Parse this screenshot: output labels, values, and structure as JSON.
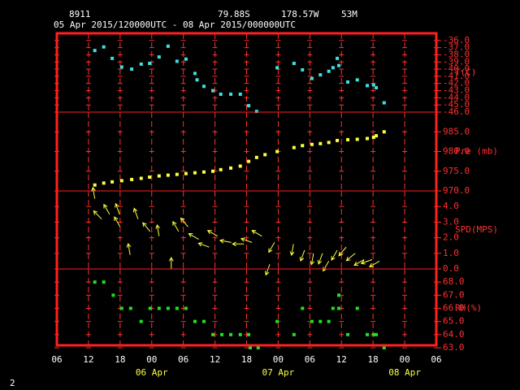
{
  "header": {
    "station": "8911",
    "lat": "79.88S",
    "lon": "178.57W",
    "elev": "53M",
    "period": "05 Apr 2015/120000UTC - 08 Apr 2015/000000UTC"
  },
  "footer": "2",
  "x_axis": {
    "xlim": [
      6,
      78
    ],
    "xticks": [
      {
        "value": 6,
        "label": "06"
      },
      12,
      18,
      {
        "value": 24,
        "label": "00"
      },
      {
        "value": 30,
        "label": "06"
      },
      {
        "value": 36,
        "label": "12"
      },
      {
        "value": 42,
        "label": "18"
      },
      {
        "value": 48,
        "label": "00"
      },
      {
        "value": 54,
        "label": "06"
      },
      {
        "value": 60,
        "label": "12"
      },
      {
        "value": 66,
        "label": "18"
      },
      {
        "value": 72,
        "label": "00"
      },
      {
        "value": 78,
        "label": "06"
      }
    ],
    "date_labels": [
      {
        "value": 24,
        "label": "06 Apr"
      },
      {
        "value": 48,
        "label": "07 Apr"
      },
      {
        "value": 72,
        "label": "08 Apr"
      }
    ]
  },
  "chart_data": [
    {
      "type": "scatter",
      "ylabel": "T(C)",
      "color": "#40e0e0",
      "ylim": [
        -46,
        -35
      ],
      "yticks": [
        {
          "value": -36,
          "label": "-36.0"
        },
        {
          "value": -37,
          "label": "-37.0"
        },
        {
          "value": -38,
          "label": "-38.0"
        },
        {
          "value": -39,
          "label": "-39.0"
        },
        {
          "value": -40,
          "label": "-40.0"
        },
        {
          "value": -41,
          "label": "-41.0"
        },
        {
          "value": -42,
          "label": "-42.0"
        },
        {
          "value": -43,
          "label": "-43.0"
        },
        {
          "value": -44,
          "label": "-44.0"
        },
        {
          "value": -45,
          "label": "-45.0"
        },
        {
          "value": -46,
          "label": "-46.0"
        }
      ],
      "x": [
        13.2,
        14.9,
        16.5,
        18.3,
        20.2,
        22,
        23.6,
        25.4,
        27.1,
        28.8,
        30.5,
        32.2,
        32.6,
        33.9,
        35.6,
        37.1,
        39,
        40.8,
        42.4,
        43.9,
        47.8,
        51,
        52.6,
        54.4,
        56,
        57.6,
        58.4,
        59.2,
        59.5,
        61.2,
        63,
        64.9,
        66.1,
        66.6,
        68.1
      ],
      "values": [
        -37.4,
        -36.9,
        -38.5,
        -39.7,
        -40,
        -39.3,
        -39.2,
        -38.3,
        -36.8,
        -38.9,
        -38.6,
        -40.6,
        -41.5,
        -42.4,
        -43,
        -43.5,
        -43.5,
        -43.5,
        -45.1,
        -45.9,
        -39.8,
        -39.2,
        -40.1,
        -41.3,
        -40.8,
        -40.3,
        -39.8,
        -38.5,
        -39.5,
        -41.8,
        -41.5,
        -42.3,
        -42.2,
        -42.6,
        -44.7
      ]
    },
    {
      "type": "scatter",
      "ylabel": "Pre (mb)",
      "color": "#ffff40",
      "ylim": [
        970,
        990
      ],
      "yticks": [
        {
          "value": 970,
          "label": "970.0"
        },
        {
          "value": 975,
          "label": "975.0"
        },
        {
          "value": 980,
          "label": "980.0"
        },
        {
          "value": 985,
          "label": "985.0"
        }
      ],
      "x": [
        13.2,
        14.9,
        16.5,
        18.3,
        20.2,
        22,
        23.6,
        25.4,
        27.1,
        28.8,
        30.5,
        32.2,
        33.9,
        35.6,
        37.1,
        39,
        40.8,
        42.4,
        43.9,
        45.5,
        47.8,
        51,
        52.6,
        54.4,
        56,
        57.6,
        59.2,
        61.2,
        63,
        64.9,
        66.1,
        66.6,
        68.1
      ],
      "values": [
        971.5,
        972,
        972.3,
        972.6,
        972.9,
        973.2,
        973.5,
        973.8,
        974,
        974.2,
        974.4,
        974.6,
        974.8,
        975,
        975.4,
        975.8,
        976.3,
        977.5,
        978.5,
        979.2,
        980,
        981,
        981.5,
        981.8,
        982,
        982.3,
        982.8,
        983,
        983.1,
        983.3,
        983.6,
        984,
        985
      ]
    },
    {
      "type": "vector",
      "ylabel": "SPD(MPS)",
      "color": "#ffff40",
      "ylim": [
        0,
        5
      ],
      "yticks": [
        {
          "value": 0,
          "label": "0.0"
        },
        {
          "value": 1,
          "label": "1.0"
        },
        {
          "value": 2,
          "label": "2.0"
        },
        {
          "value": 3,
          "label": "3.0"
        },
        {
          "value": 4,
          "label": "4.0"
        }
      ],
      "x": [
        13.2,
        14.5,
        16,
        17.9,
        18,
        19.9,
        21.4,
        23.7,
        25.4,
        27.7,
        29.1,
        30.9,
        32.9,
        34.9,
        36.5,
        39.1,
        41.5,
        43,
        44.9,
        46.4,
        47.3,
        50.9,
        53,
        54.7,
        56.4,
        57.6,
        59.2,
        60.9,
        62.6,
        64.3,
        65.8,
        67.2
      ],
      "values": [
        4.5,
        3.2,
        3.5,
        3.5,
        2.7,
        0.9,
        3.2,
        2.4,
        2.1,
        0,
        2.4,
        2.7,
        1.9,
        1.4,
        2.1,
        1.7,
        1.6,
        1.7,
        2.1,
        0.3,
        1.7,
        1.6,
        1.2,
        1,
        1,
        0.5,
        1.2,
        1.4,
        1,
        0.6,
        0.6,
        0.5
      ],
      "directions": [
        350,
        315,
        330,
        340,
        330,
        350,
        340,
        320,
        350,
        0,
        330,
        320,
        300,
        290,
        300,
        280,
        270,
        290,
        300,
        200,
        210,
        190,
        200,
        190,
        200,
        210,
        210,
        220,
        230,
        240,
        250,
        240
      ]
    },
    {
      "type": "scatter",
      "ylabel": "RH(%)",
      "color": "#20e020",
      "ylim": [
        63,
        69
      ],
      "yticks": [
        {
          "value": 63,
          "label": "63.0"
        },
        {
          "value": 64,
          "label": "64.0"
        },
        {
          "value": 65,
          "label": "65.0"
        },
        {
          "value": 66,
          "label": "66.0"
        },
        {
          "value": 67,
          "label": "67.0"
        },
        {
          "value": 68,
          "label": "68.0"
        }
      ],
      "x": [
        13.2,
        14.9,
        16.7,
        18.3,
        20,
        22,
        23.7,
        25.4,
        27.1,
        28.8,
        30.5,
        32.2,
        33.9,
        35.6,
        37.3,
        39,
        40.8,
        42.4,
        42.7,
        44.2,
        47.8,
        51,
        52.6,
        54.4,
        56,
        57.6,
        58.4,
        59.5,
        59.5,
        61.2,
        63,
        64.9,
        66.1,
        66.6,
        68.1
      ],
      "values": [
        68,
        68,
        67,
        66,
        66,
        65,
        66,
        66,
        66,
        66,
        66,
        65,
        65,
        64,
        64,
        64,
        64,
        64,
        63,
        63,
        65,
        64,
        66,
        65,
        65,
        65,
        66,
        67,
        66,
        64,
        66,
        64,
        64,
        64,
        63
      ]
    }
  ]
}
